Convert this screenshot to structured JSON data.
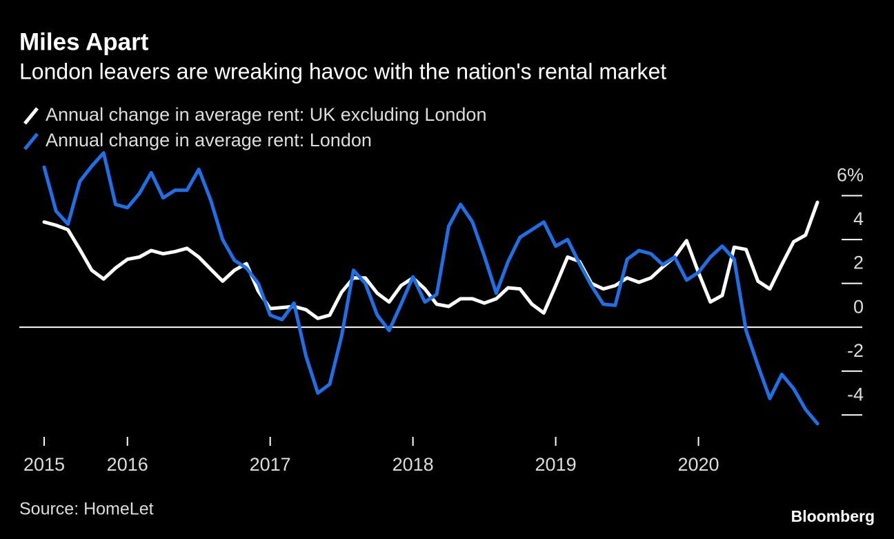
{
  "chart_data": {
    "type": "line",
    "title": "Miles Apart",
    "subtitle": "London leavers are wreaking havoc with the nation's rental market",
    "source": "Source: HomeLet",
    "brand": "Bloomberg",
    "categories": [
      "2015",
      null,
      null,
      null,
      null,
      null,
      null,
      "2016",
      null,
      null,
      null,
      null,
      null,
      null,
      null,
      null,
      null,
      null,
      null,
      "2017",
      null,
      null,
      null,
      null,
      null,
      null,
      null,
      null,
      null,
      null,
      null,
      "2018",
      null,
      null,
      null,
      null,
      null,
      null,
      null,
      null,
      null,
      null,
      null,
      "2019",
      null,
      null,
      null,
      null,
      null,
      null,
      null,
      null,
      null,
      null,
      null,
      "2020",
      null,
      null,
      null,
      null,
      null,
      null,
      null,
      null,
      null,
      null
    ],
    "series": [
      {
        "name": "Annual change in average rent: UK excluding London",
        "color": "#ffffff",
        "values": [
          4.8,
          4.65,
          4.45,
          3.55,
          2.6,
          2.2,
          2.7,
          3.1,
          3.2,
          3.5,
          3.35,
          3.45,
          3.6,
          3.2,
          2.65,
          2.1,
          2.6,
          2.9,
          1.65,
          0.85,
          0.9,
          0.95,
          0.8,
          0.4,
          0.55,
          1.6,
          2.25,
          2.25,
          1.55,
          1.15,
          1.9,
          2.25,
          1.75,
          1.05,
          0.95,
          1.3,
          1.3,
          1.1,
          1.3,
          1.8,
          1.75,
          1.05,
          0.65,
          1.9,
          3.2,
          3.0,
          2.0,
          1.75,
          1.9,
          2.25,
          2.05,
          2.25,
          2.75,
          3.2,
          3.95,
          2.5,
          1.15,
          1.45,
          3.65,
          3.55,
          2.1,
          1.75,
          2.85,
          3.9,
          4.2,
          5.7
        ]
      },
      {
        "name": "Annual change in average rent: London",
        "color": "#1f6fe5",
        "values": [
          7.3,
          5.3,
          4.7,
          6.65,
          7.35,
          7.95,
          5.6,
          5.45,
          6.1,
          7.05,
          5.9,
          6.25,
          6.25,
          7.2,
          5.8,
          4.0,
          3.05,
          2.7,
          2.0,
          0.55,
          0.35,
          1.1,
          -1.3,
          -3.0,
          -2.6,
          -0.4,
          2.6,
          2.0,
          0.55,
          -0.15,
          1.05,
          2.3,
          1.15,
          1.5,
          4.6,
          5.6,
          4.8,
          3.25,
          1.55,
          3.0,
          4.1,
          4.45,
          4.8,
          3.7,
          4.0,
          2.9,
          1.9,
          1.05,
          1.0,
          3.1,
          3.5,
          3.35,
          2.85,
          3.2,
          2.15,
          2.5,
          3.2,
          3.7,
          3.1,
          -0.15,
          -1.75,
          -3.25,
          -2.15,
          -2.8,
          -3.75,
          -4.4
        ]
      }
    ],
    "ylim": [
      -5,
      8
    ],
    "yticks": [
      {
        "value": 6,
        "label": "6%"
      },
      4,
      2,
      0,
      -2,
      -4
    ]
  }
}
